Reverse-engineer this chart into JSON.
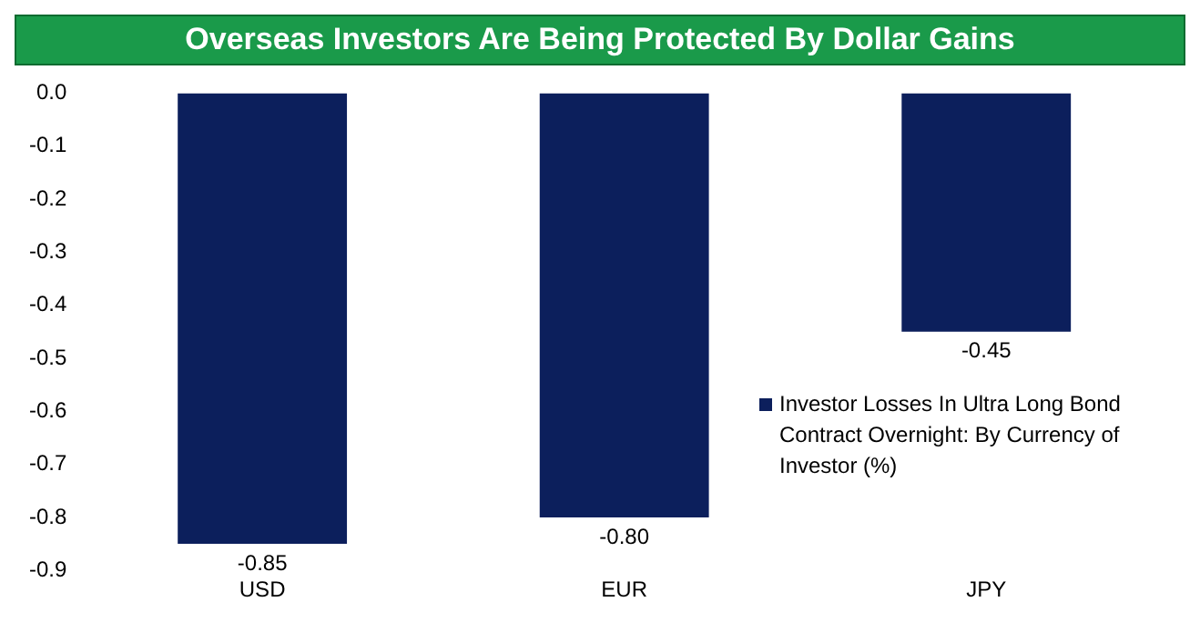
{
  "chart_data": {
    "type": "bar",
    "title": "Overseas Investors Are Being Protected By Dollar Gains",
    "categories": [
      "USD",
      "EUR",
      "JPY"
    ],
    "series": [
      {
        "name": "Investor Losses In Ultra Long Bond Contract Overnight: By Currency of Investor (%)",
        "color": "#0c1f5c",
        "values": [
          -0.85,
          -0.8,
          -0.45
        ],
        "value_labels": [
          "-0.85",
          "-0.80",
          "-0.45"
        ]
      }
    ],
    "ylim": [
      -0.9,
      0
    ],
    "yticks": [
      {
        "value": 0,
        "label": "0.0"
      },
      -0.1,
      -0.2,
      -0.3,
      -0.4,
      -0.5,
      -0.6,
      -0.7,
      -0.8,
      -0.9
    ],
    "grid": false,
    "legend": "right"
  }
}
